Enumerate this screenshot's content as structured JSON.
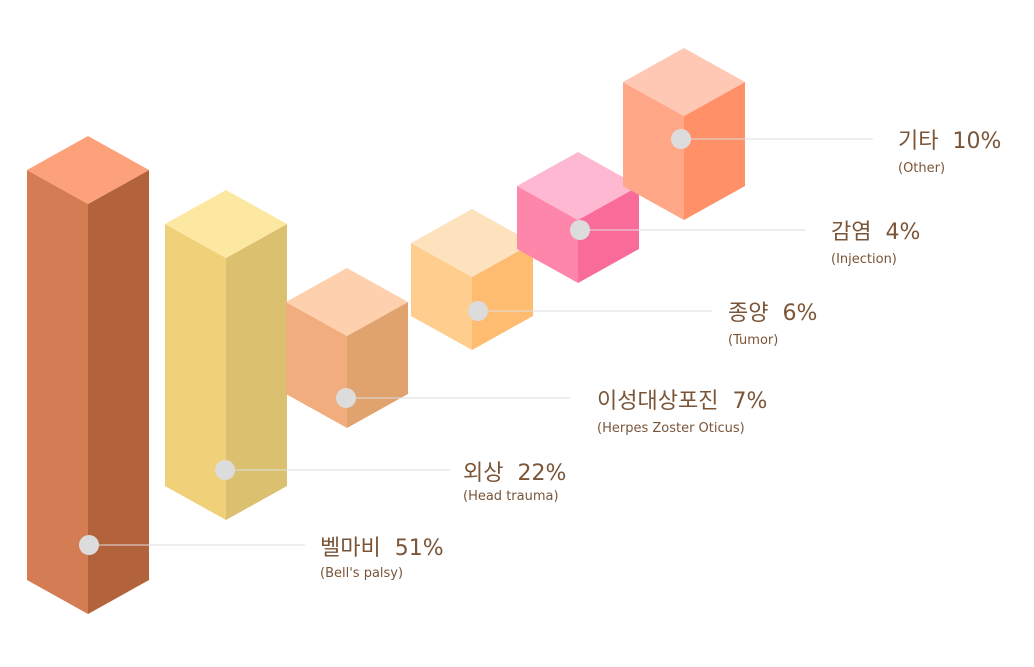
{
  "chart_data": {
    "type": "bar",
    "title": "",
    "xlabel": "",
    "ylabel": "",
    "unit": "%",
    "items": [
      {
        "name": "벨마비",
        "english": "(Bell's palsy)",
        "value": 51,
        "label": "51%",
        "colors": {
          "top": "#fda17a",
          "left": "#d47c53",
          "right": "#b2633c"
        }
      },
      {
        "name": "외상",
        "english": "(Head trauma)",
        "value": 22,
        "label": "22%",
        "colors": {
          "top": "#fde8a2",
          "left": "#f0d078",
          "right": "#dbc16f"
        }
      },
      {
        "name": "이성대상포진",
        "english": "(Herpes Zoster Oticus)",
        "value": 7,
        "label": "7%",
        "colors": {
          "top": "#fed0ae",
          "left": "#f1ad7d",
          "right": "#e0a36d"
        }
      },
      {
        "name": "종양",
        "english": "(Tumor)",
        "value": 6,
        "label": "6%",
        "colors": {
          "top": "#fde2be",
          "left": "#ffcd8d",
          "right": "#fdbc70"
        }
      },
      {
        "name": "감염",
        "english": "(Injection)",
        "value": 4,
        "label": "4%",
        "colors": {
          "top": "#ffb8d2",
          "left": "#ff86ab",
          "right": "#f96c99"
        }
      },
      {
        "name": "기타",
        "english": "(Other)",
        "value": 10,
        "label": "10%",
        "colors": {
          "top": "#ffc8b5",
          "left": "#ffa786",
          "right": "#ff9068"
        }
      }
    ]
  }
}
